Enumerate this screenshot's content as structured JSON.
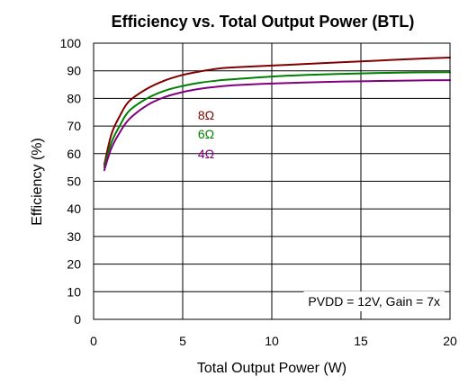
{
  "chart_data": {
    "type": "line",
    "title": "Efficiency vs. Total Output Power (BTL)",
    "xlabel": "Total Output Power (W)",
    "ylabel": "Efficiency (%)",
    "xlim": [
      0,
      20
    ],
    "ylim": [
      0,
      100
    ],
    "xticks": [
      0,
      5,
      10,
      15,
      20
    ],
    "yticks": [
      0,
      10,
      20,
      30,
      40,
      50,
      60,
      70,
      80,
      90,
      100
    ],
    "grid": true,
    "annotation": "PVDD = 12V, Gain = 7x",
    "series": [
      {
        "name": "8Ω",
        "color": "#800000",
        "x": [
          0.6,
          1,
          1.5,
          2,
          3,
          4,
          5,
          6,
          7,
          8,
          10,
          12,
          14,
          16,
          18,
          20
        ],
        "y": [
          56,
          67,
          74,
          79,
          83.5,
          86.5,
          88.5,
          89.8,
          90.8,
          91.3,
          91.9,
          92.5,
          93.1,
          93.7,
          94.3,
          94.8
        ]
      },
      {
        "name": "6Ω",
        "color": "#008000",
        "x": [
          0.6,
          1,
          1.5,
          2,
          3,
          4,
          5,
          6,
          7,
          8,
          10,
          12,
          14,
          16,
          18,
          20
        ],
        "y": [
          55,
          64,
          70.5,
          75.5,
          80,
          82.8,
          84.5,
          85.7,
          86.5,
          87,
          87.9,
          88.5,
          88.9,
          89.2,
          89.4,
          89.5
        ]
      },
      {
        "name": "4Ω",
        "color": "#800080",
        "x": [
          0.6,
          1,
          1.5,
          2,
          3,
          4,
          5,
          6,
          7,
          8,
          10,
          12,
          14,
          16,
          18,
          20
        ],
        "y": [
          54,
          62,
          68,
          72.5,
          77.5,
          80.5,
          82.3,
          83.5,
          84.3,
          84.8,
          85.4,
          85.8,
          86.1,
          86.3,
          86.5,
          86.6
        ]
      }
    ]
  }
}
